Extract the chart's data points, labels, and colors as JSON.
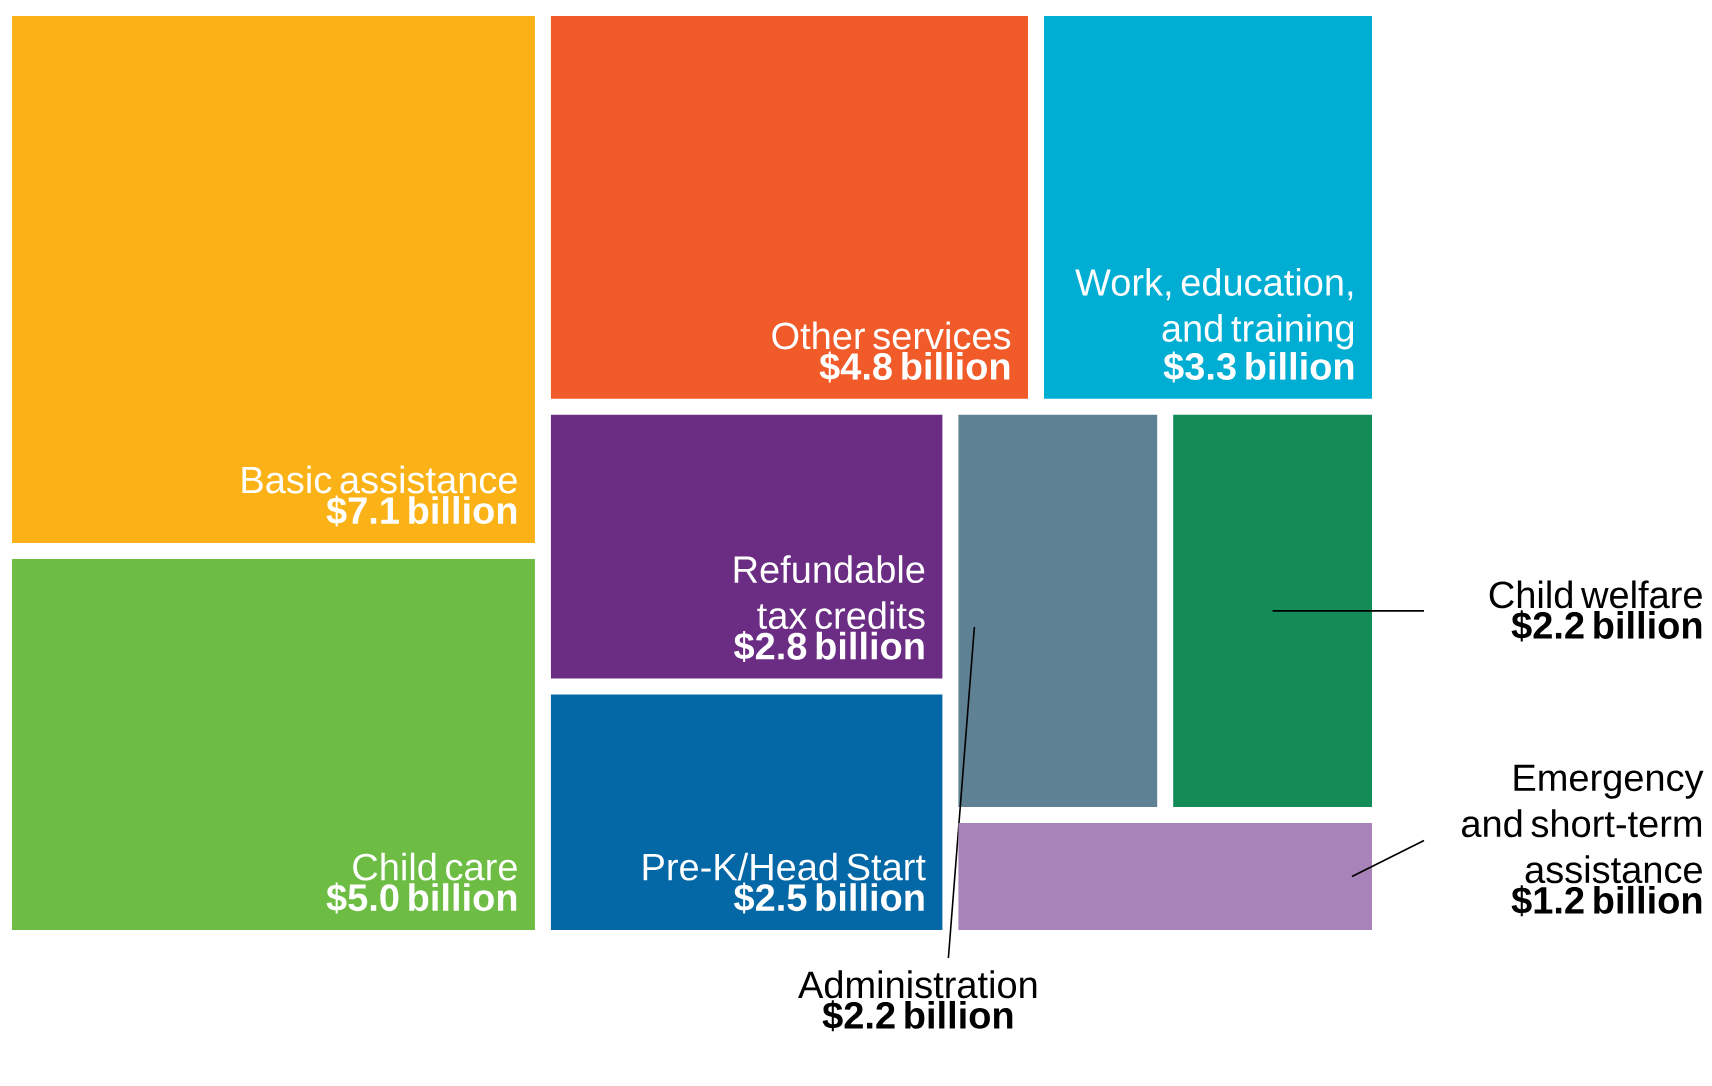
{
  "chart_data": {
    "type": "other",
    "categories": [
      "Basic assistance",
      "Child care",
      "Other services",
      "Work, education, and training",
      "Refundable tax credits",
      "Pre-K/Head Start",
      "Administration",
      "Child welfare",
      "Emergency and short-term assistance"
    ],
    "values": [
      7.1,
      5.0,
      4.8,
      3.3,
      2.8,
      2.5,
      2.2,
      2.2,
      1.2
    ],
    "value_labels": [
      "$7.1 billion",
      "$5.0 billion",
      "$4.8 billion",
      "$3.3 billion",
      "$2.8 billion",
      "$2.5 billion",
      "$2.2 billion",
      "$2.2 billion",
      "$1.2 billion"
    ],
    "colors": [
      "#fbb217",
      "#6dbd45",
      "#f15a29",
      "#00aed4",
      "#6b2c83",
      "#0568a6",
      "#5e8193",
      "#148c58",
      "#a883b9"
    ]
  }
}
